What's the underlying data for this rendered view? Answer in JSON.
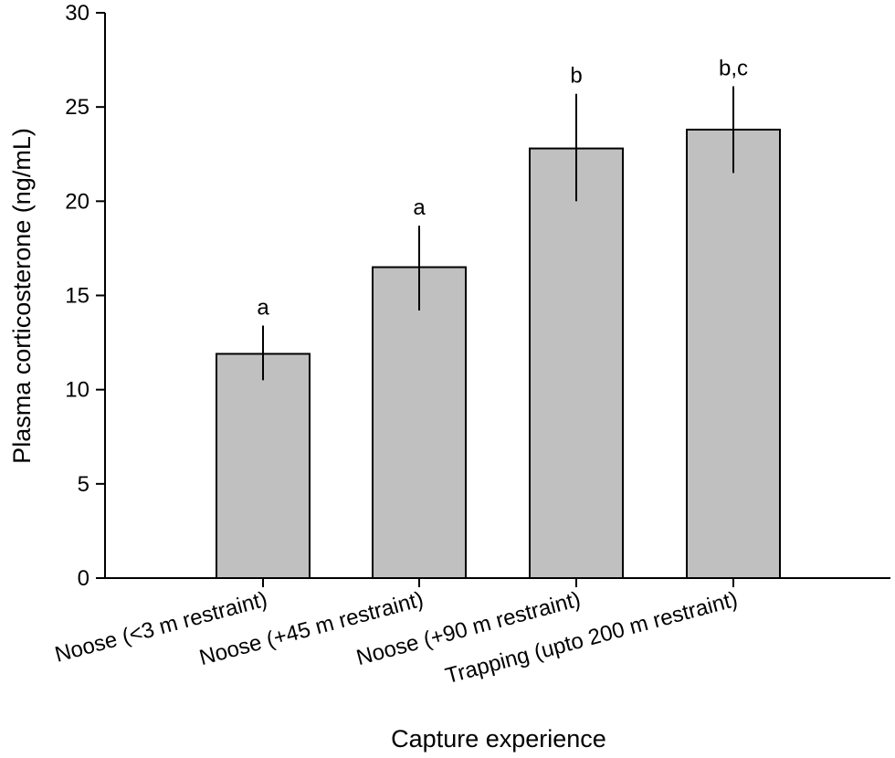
{
  "chart_data": {
    "type": "bar",
    "title": "",
    "xlabel": "Capture experience",
    "ylabel": "Plasma corticosterone (ng/mL)",
    "ylim": [
      0,
      30
    ],
    "yticks": [
      0,
      5,
      10,
      15,
      20,
      25,
      30
    ],
    "categories": [
      "Noose (<3 m restraint)",
      "Noose (+45 m restraint)",
      "Noose (+90 m restraint)",
      "Trapping (upto 200 m restraint)"
    ],
    "values": [
      11.9,
      16.5,
      22.8,
      23.8
    ],
    "error_upper": [
      13.4,
      18.7,
      25.7,
      26.1
    ],
    "error_lower": [
      10.5,
      14.2,
      20.0,
      21.5
    ],
    "significance_labels": [
      "a",
      "a",
      "b",
      "b,c"
    ],
    "grid": false,
    "legend": "none",
    "colors": {
      "bar_fill": "#c0c0c0",
      "bar_stroke": "#000000",
      "axis": "#000000"
    }
  }
}
